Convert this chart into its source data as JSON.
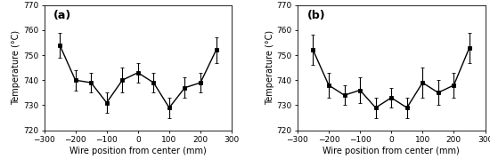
{
  "panel_a": {
    "label": "(a)",
    "x": [
      -250,
      -200,
      -150,
      -100,
      -50,
      0,
      50,
      100,
      150,
      200,
      250
    ],
    "y": [
      754,
      740,
      739,
      731,
      740,
      743,
      739,
      729,
      737,
      739,
      752
    ],
    "yerr": [
      5,
      4,
      4,
      4,
      5,
      4,
      4,
      4,
      4,
      4,
      5
    ]
  },
  "panel_b": {
    "label": "(b)",
    "x": [
      -250,
      -200,
      -150,
      -100,
      -50,
      0,
      50,
      100,
      150,
      200,
      250
    ],
    "y": [
      752,
      738,
      734,
      736,
      729,
      733,
      729,
      739,
      735,
      738,
      753
    ],
    "yerr": [
      6,
      5,
      4,
      5,
      4,
      4,
      4,
      6,
      5,
      5,
      6
    ]
  },
  "xlim": [
    -300,
    300
  ],
  "ylim": [
    720,
    770
  ],
  "xticks": [
    -300,
    -200,
    -100,
    0,
    100,
    200,
    300
  ],
  "yticks": [
    720,
    730,
    740,
    750,
    760,
    770
  ],
  "xlabel": "Wire position from center (mm)",
  "ylabel": "Temperature (°C)",
  "line_color": "#000000",
  "marker": "s",
  "markersize": 3.0,
  "linewidth": 1.0,
  "capsize": 1.5,
  "elinewidth": 0.8,
  "label_fontsize": 7,
  "tick_fontsize": 6.5,
  "panel_label_fontsize": 9
}
